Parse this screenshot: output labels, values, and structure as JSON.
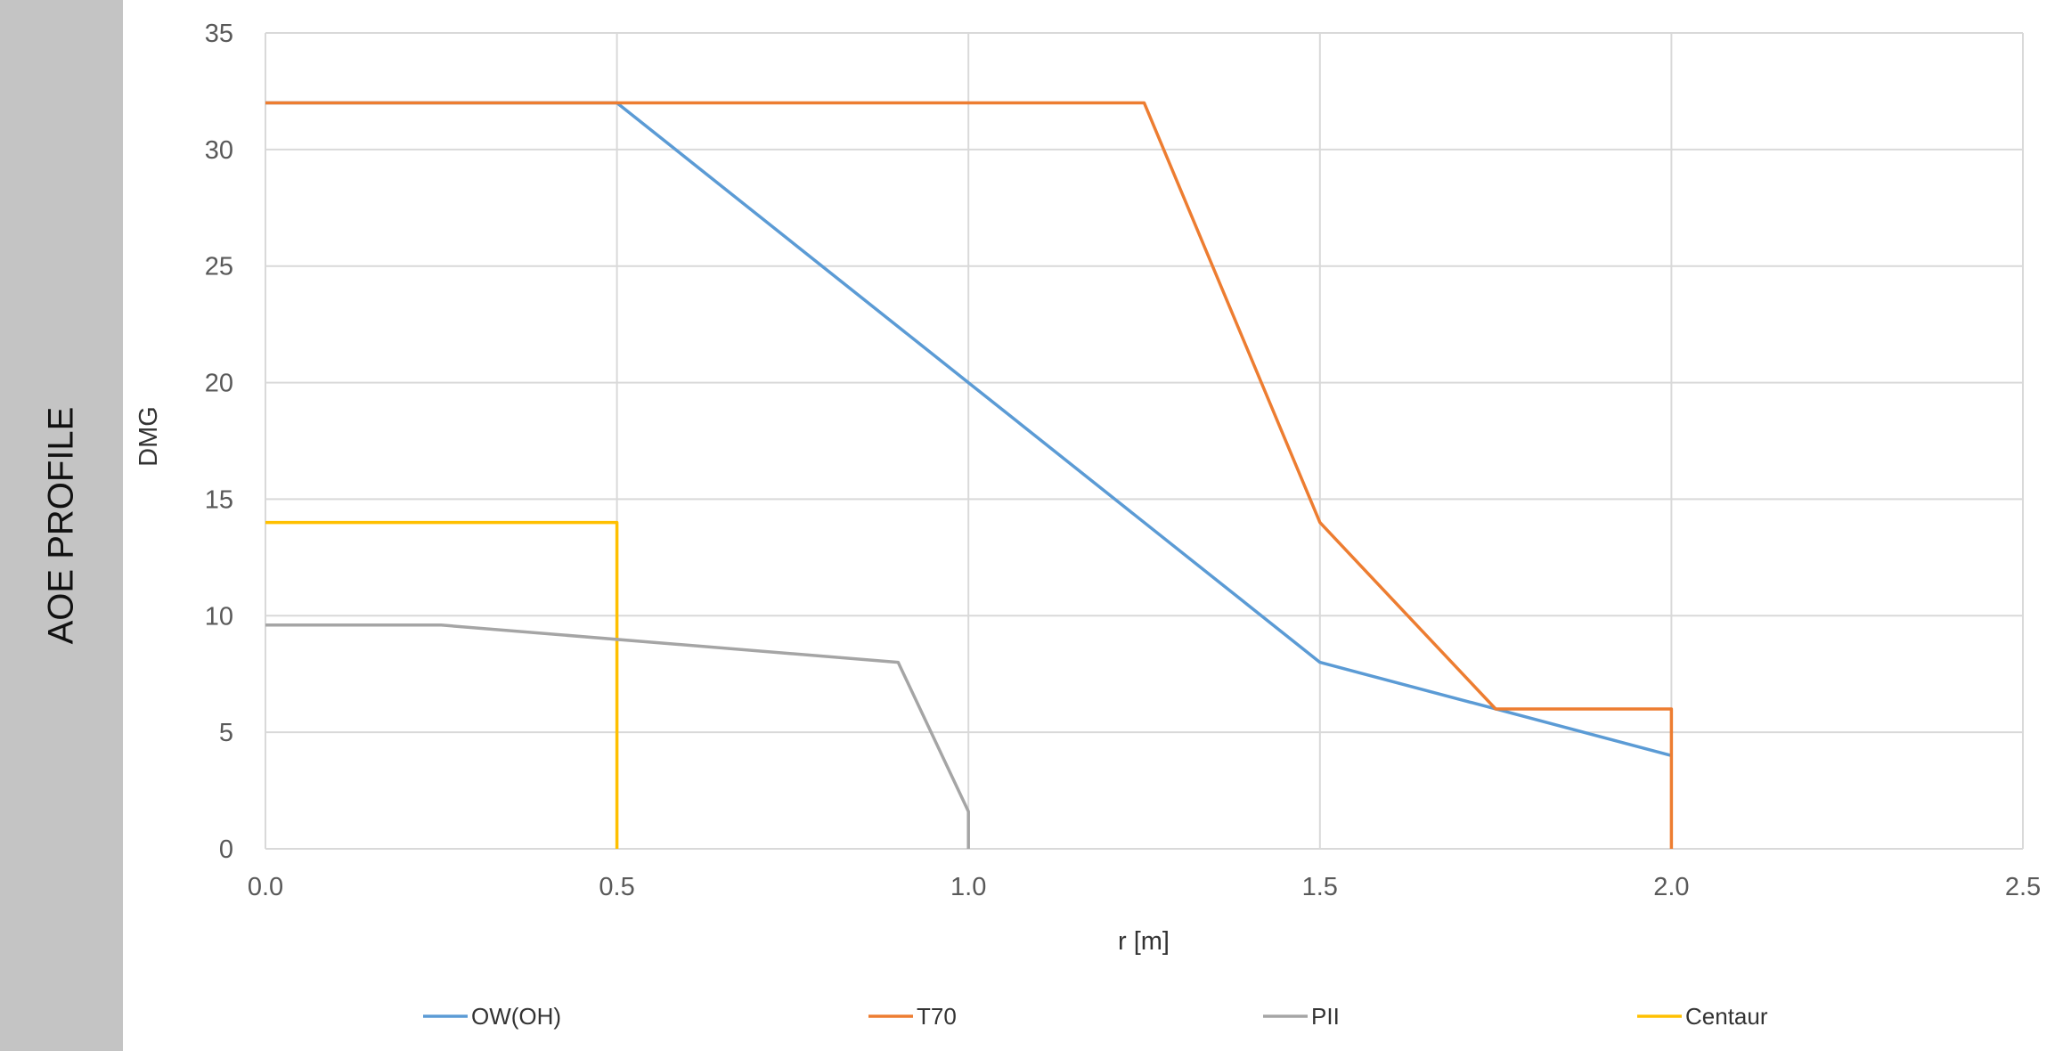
{
  "side_panel": {
    "title": "AOE PROFILE"
  },
  "chart_data": {
    "type": "line",
    "title": "",
    "xlabel": "r [m]",
    "ylabel": "DMG",
    "xlim": [
      0,
      2.5
    ],
    "ylim": [
      0,
      35
    ],
    "x_ticks": [
      0.0,
      0.5,
      1.0,
      1.5,
      2.0,
      2.5
    ],
    "x_tick_labels": [
      "0.0",
      "0.5",
      "1.0",
      "1.5",
      "2.0",
      "2.5"
    ],
    "y_ticks": [
      0,
      5,
      10,
      15,
      20,
      25,
      30,
      35
    ],
    "y_tick_labels": [
      "0",
      "5",
      "10",
      "15",
      "20",
      "25",
      "30",
      "35"
    ],
    "grid": "on",
    "legend_position": "bottom",
    "series": [
      {
        "name": "OW(OH)",
        "color": "#5b9bd5",
        "points": [
          [
            0,
            32
          ],
          [
            0.5,
            32
          ],
          [
            1.0,
            20
          ],
          [
            1.5,
            8
          ],
          [
            2.0,
            4
          ]
        ]
      },
      {
        "name": "T70",
        "color": "#ed7d31",
        "points": [
          [
            0,
            32
          ],
          [
            1.25,
            32
          ],
          [
            1.5,
            14
          ],
          [
            1.75,
            6
          ],
          [
            2.0,
            6
          ],
          [
            2.0,
            0
          ]
        ]
      },
      {
        "name": "PII",
        "color": "#a5a5a5",
        "points": [
          [
            0,
            9.6
          ],
          [
            0.25,
            9.6
          ],
          [
            0.9,
            8.0
          ],
          [
            1.0,
            1.6
          ],
          [
            1.0,
            0
          ]
        ]
      },
      {
        "name": "Centaur",
        "color": "#ffc000",
        "points": [
          [
            0,
            14
          ],
          [
            0.5,
            14
          ],
          [
            0.5,
            0
          ]
        ]
      }
    ]
  }
}
